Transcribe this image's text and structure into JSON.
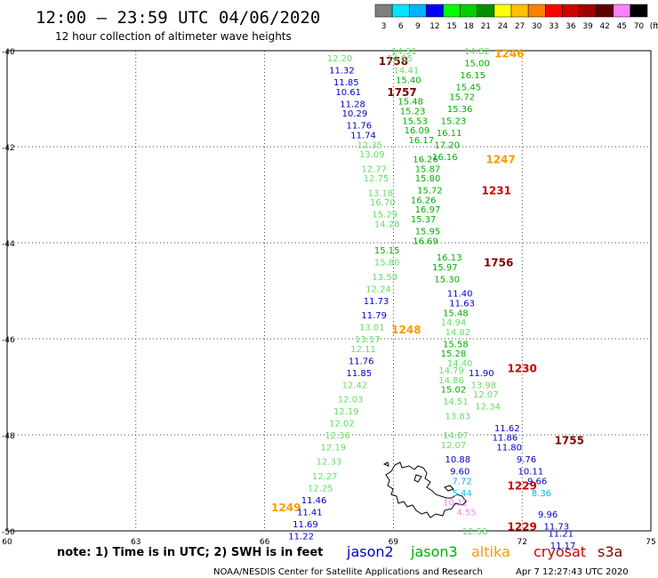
{
  "header": {
    "title": "12:00 – 23:59 UTC 04/06/2020",
    "subtitle": "12 hour collection of altimeter wave heights"
  },
  "colorbar": {
    "labels": [
      "3",
      "6",
      "9",
      "12",
      "15",
      "18",
      "21",
      "24",
      "27",
      "30",
      "33",
      "36",
      "39",
      "42",
      "45",
      "70",
      "(ft)"
    ],
    "colors": [
      "#7f7f7f",
      "#00e5ff",
      "#00b3ff",
      "#0000ff",
      "#00ff00",
      "#00d000",
      "#009000",
      "#ffff00",
      "#ffc000",
      "#ff8000",
      "#ff0000",
      "#d00000",
      "#a00000",
      "#600000",
      "#ff80ff",
      "#000000"
    ]
  },
  "axes": {
    "lat_labels": [
      "-40",
      "-42",
      "-44",
      "-46",
      "-48",
      "-50"
    ],
    "lat_values": [
      -40,
      -42,
      -44,
      -46,
      -48,
      -50
    ],
    "lon_labels": [
      "60",
      "63",
      "66",
      "69",
      "72",
      "75"
    ],
    "lon_values": [
      60,
      63,
      66,
      69,
      72,
      75
    ]
  },
  "footer": {
    "note": "note: 1) Time is in UTC; 2) SWH is in feet",
    "credit": "NOAA/NESDIS Center for Satellite Applications and Research",
    "timestamp": "Apr  7 12:27:43 UTC 2020"
  },
  "legend": [
    {
      "name": "jason2",
      "color": "#0000cc"
    },
    {
      "name": "jason3",
      "color": "#00b000"
    },
    {
      "name": "altika",
      "color": "#ff9900"
    },
    {
      "name": "cryosat",
      "color": "#cc0000"
    },
    {
      "name": "s3a",
      "color": "#800000"
    }
  ],
  "chart_data": {
    "type": "map",
    "xlim": [
      60,
      75
    ],
    "ylim": [
      -50,
      -40
    ],
    "pass_times": [
      {
        "text": "1758",
        "lon": 69.0,
        "lat": -40.2,
        "color": "#800000"
      },
      {
        "text": "1757",
        "lon": 69.2,
        "lat": -40.85,
        "color": "#800000"
      },
      {
        "text": "1246",
        "lon": 71.7,
        "lat": -40.05,
        "color": "#ff9900"
      },
      {
        "text": "1247",
        "lon": 71.5,
        "lat": -42.25,
        "color": "#ff9900"
      },
      {
        "text": "1231",
        "lon": 71.4,
        "lat": -42.9,
        "color": "#cc0000"
      },
      {
        "text": "1756",
        "lon": 71.45,
        "lat": -44.4,
        "color": "#800000"
      },
      {
        "text": "1248",
        "lon": 69.3,
        "lat": -45.8,
        "color": "#ff9900"
      },
      {
        "text": "1230",
        "lon": 72.0,
        "lat": -46.6,
        "color": "#cc0000"
      },
      {
        "text": "1755",
        "lon": 73.1,
        "lat": -48.1,
        "color": "#800000"
      },
      {
        "text": "1229",
        "lon": 72.0,
        "lat": -49.05,
        "color": "#cc0000"
      },
      {
        "text": "1229",
        "lon": 72.0,
        "lat": -49.9,
        "color": "#cc0000"
      },
      {
        "text": "1249",
        "lon": 66.5,
        "lat": -49.5,
        "color": "#ff9900"
      }
    ],
    "swh": [
      {
        "text": "14.31",
        "lon": 69.25,
        "lat": -40.0,
        "color": "#66dd66"
      },
      {
        "text": "14.85",
        "lon": 69.15,
        "lat": -40.15,
        "color": "#66dd66"
      },
      {
        "text": "14.41",
        "lon": 69.3,
        "lat": -40.4,
        "color": "#66dd66"
      },
      {
        "text": "15.40",
        "lon": 69.35,
        "lat": -40.6,
        "color": "#00b000"
      },
      {
        "text": "15.48",
        "lon": 69.4,
        "lat": -41.05,
        "color": "#00b000"
      },
      {
        "text": "15.23",
        "lon": 69.45,
        "lat": -41.25,
        "color": "#00b000"
      },
      {
        "text": "15.53",
        "lon": 69.5,
        "lat": -41.45,
        "color": "#00b000"
      },
      {
        "text": "16.09",
        "lon": 69.55,
        "lat": -41.65,
        "color": "#00b000"
      },
      {
        "text": "16.17",
        "lon": 69.65,
        "lat": -41.85,
        "color": "#00b000"
      },
      {
        "text": "16.26",
        "lon": 69.75,
        "lat": -42.25,
        "color": "#00b000"
      },
      {
        "text": "15.87",
        "lon": 69.8,
        "lat": -42.45,
        "color": "#00b000"
      },
      {
        "text": "15.80",
        "lon": 69.8,
        "lat": -42.65,
        "color": "#00b000"
      },
      {
        "text": "15.72",
        "lon": 69.85,
        "lat": -42.9,
        "color": "#00b000"
      },
      {
        "text": "16.26",
        "lon": 69.7,
        "lat": -43.1,
        "color": "#00b000"
      },
      {
        "text": "16.97",
        "lon": 69.8,
        "lat": -43.3,
        "color": "#00b000"
      },
      {
        "text": "15.37",
        "lon": 69.7,
        "lat": -43.5,
        "color": "#00b000"
      },
      {
        "text": "15.95",
        "lon": 69.8,
        "lat": -43.75,
        "color": "#00b000"
      },
      {
        "text": "16.69",
        "lon": 69.75,
        "lat": -43.95,
        "color": "#00b000"
      },
      {
        "text": "14.82",
        "lon": 70.95,
        "lat": -40.0,
        "color": "#66dd66"
      },
      {
        "text": "15.00",
        "lon": 70.95,
        "lat": -40.25,
        "color": "#00b000"
      },
      {
        "text": "16.15",
        "lon": 70.85,
        "lat": -40.5,
        "color": "#00b000"
      },
      {
        "text": "15.45",
        "lon": 70.75,
        "lat": -40.75,
        "color": "#00b000"
      },
      {
        "text": "15.72",
        "lon": 70.6,
        "lat": -40.95,
        "color": "#00b000"
      },
      {
        "text": "15.36",
        "lon": 70.55,
        "lat": -41.2,
        "color": "#00b000"
      },
      {
        "text": "15.23",
        "lon": 70.4,
        "lat": -41.45,
        "color": "#00b000"
      },
      {
        "text": "16.11",
        "lon": 70.3,
        "lat": -41.7,
        "color": "#00b000"
      },
      {
        "text": "17.20",
        "lon": 70.25,
        "lat": -41.95,
        "color": "#00b000"
      },
      {
        "text": "16.16",
        "lon": 70.2,
        "lat": -42.2,
        "color": "#00b000"
      },
      {
        "text": "12.20",
        "lon": 67.75,
        "lat": -40.15,
        "color": "#66dd66"
      },
      {
        "text": "11.32",
        "lon": 67.8,
        "lat": -40.4,
        "color": "#0000cc"
      },
      {
        "text": "11.85",
        "lon": 67.9,
        "lat": -40.65,
        "color": "#0000cc"
      },
      {
        "text": "10.61",
        "lon": 67.95,
        "lat": -40.85,
        "color": "#0000cc"
      },
      {
        "text": "11.28",
        "lon": 68.05,
        "lat": -41.1,
        "color": "#0000cc"
      },
      {
        "text": "10.29",
        "lon": 68.1,
        "lat": -41.3,
        "color": "#0000cc"
      },
      {
        "text": "11.76",
        "lon": 68.2,
        "lat": -41.55,
        "color": "#0000cc"
      },
      {
        "text": "11.74",
        "lon": 68.3,
        "lat": -41.75,
        "color": "#0000cc"
      },
      {
        "text": "12.35",
        "lon": 68.45,
        "lat": -41.95,
        "color": "#66dd66"
      },
      {
        "text": "13.09",
        "lon": 68.5,
        "lat": -42.15,
        "color": "#66dd66"
      },
      {
        "text": "12.77",
        "lon": 68.55,
        "lat": -42.45,
        "color": "#66dd66"
      },
      {
        "text": "12.75",
        "lon": 68.6,
        "lat": -42.65,
        "color": "#66dd66"
      },
      {
        "text": "13.18",
        "lon": 68.7,
        "lat": -42.95,
        "color": "#66dd66"
      },
      {
        "text": "16.70",
        "lon": 68.75,
        "lat": -43.15,
        "color": "#66dd66"
      },
      {
        "text": "15.29",
        "lon": 68.8,
        "lat": -43.4,
        "color": "#66dd66"
      },
      {
        "text": "14.28",
        "lon": 68.85,
        "lat": -43.6,
        "color": "#66dd66"
      },
      {
        "text": "15.15",
        "lon": 68.85,
        "lat": -44.15,
        "color": "#00b000"
      },
      {
        "text": "16.13",
        "lon": 70.3,
        "lat": -44.3,
        "color": "#00b000"
      },
      {
        "text": "15.97",
        "lon": 70.2,
        "lat": -44.5,
        "color": "#00b000"
      },
      {
        "text": "15.30",
        "lon": 70.25,
        "lat": -44.75,
        "color": "#00b000"
      },
      {
        "text": "15.80",
        "lon": 68.85,
        "lat": -44.4,
        "color": "#66dd66"
      },
      {
        "text": "13.59",
        "lon": 68.8,
        "lat": -44.7,
        "color": "#66dd66"
      },
      {
        "text": "12.24",
        "lon": 68.65,
        "lat": -44.95,
        "color": "#66dd66"
      },
      {
        "text": "11.73",
        "lon": 68.6,
        "lat": -45.2,
        "color": "#0000cc"
      },
      {
        "text": "11.79",
        "lon": 68.55,
        "lat": -45.5,
        "color": "#0000cc"
      },
      {
        "text": "13.01",
        "lon": 68.5,
        "lat": -45.75,
        "color": "#66dd66"
      },
      {
        "text": "13.17",
        "lon": 68.4,
        "lat": -46.0,
        "color": "#66dd66"
      },
      {
        "text": "12.11",
        "lon": 68.3,
        "lat": -46.2,
        "color": "#66dd66"
      },
      {
        "text": "11.76",
        "lon": 68.25,
        "lat": -46.45,
        "color": "#0000cc"
      },
      {
        "text": "11.85",
        "lon": 68.2,
        "lat": -46.7,
        "color": "#0000cc"
      },
      {
        "text": "12.42",
        "lon": 68.1,
        "lat": -46.95,
        "color": "#66dd66"
      },
      {
        "text": "12.03",
        "lon": 68.0,
        "lat": -47.25,
        "color": "#66dd66"
      },
      {
        "text": "12.19",
        "lon": 67.9,
        "lat": -47.5,
        "color": "#66dd66"
      },
      {
        "text": "12.02",
        "lon": 67.8,
        "lat": -47.75,
        "color": "#66dd66"
      },
      {
        "text": "12.36",
        "lon": 67.7,
        "lat": -48.0,
        "color": "#66dd66"
      },
      {
        "text": "12.19",
        "lon": 67.6,
        "lat": -48.25,
        "color": "#66dd66"
      },
      {
        "text": "12.33",
        "lon": 67.5,
        "lat": -48.55,
        "color": "#66dd66"
      },
      {
        "text": "12.27",
        "lon": 67.4,
        "lat": -48.85,
        "color": "#66dd66"
      },
      {
        "text": "12.25",
        "lon": 67.3,
        "lat": -49.1,
        "color": "#66dd66"
      },
      {
        "text": "11.46",
        "lon": 67.15,
        "lat": -49.35,
        "color": "#0000cc"
      },
      {
        "text": "11.41",
        "lon": 67.05,
        "lat": -49.6,
        "color": "#0000cc"
      },
      {
        "text": "11.69",
        "lon": 66.95,
        "lat": -49.85,
        "color": "#0000cc"
      },
      {
        "text": "11.22",
        "lon": 66.85,
        "lat": -50.1,
        "color": "#0000cc"
      },
      {
        "text": "11.40",
        "lon": 70.55,
        "lat": -45.05,
        "color": "#0000cc"
      },
      {
        "text": "11.63",
        "lon": 70.6,
        "lat": -45.25,
        "color": "#0000cc"
      },
      {
        "text": "15.48",
        "lon": 70.45,
        "lat": -45.45,
        "color": "#00b000"
      },
      {
        "text": "14.94",
        "lon": 70.4,
        "lat": -45.65,
        "color": "#66dd66"
      },
      {
        "text": "14.82",
        "lon": 70.5,
        "lat": -45.85,
        "color": "#66dd66"
      },
      {
        "text": "15.58",
        "lon": 70.45,
        "lat": -46.1,
        "color": "#00b000"
      },
      {
        "text": "15.28",
        "lon": 70.4,
        "lat": -46.3,
        "color": "#00b000"
      },
      {
        "text": "14.40",
        "lon": 70.55,
        "lat": -46.5,
        "color": "#66dd66"
      },
      {
        "text": "14.79",
        "lon": 70.35,
        "lat": -46.65,
        "color": "#66dd66"
      },
      {
        "text": "11.90",
        "lon": 71.05,
        "lat": -46.7,
        "color": "#0000cc"
      },
      {
        "text": "14.86",
        "lon": 70.35,
        "lat": -46.85,
        "color": "#66dd66"
      },
      {
        "text": "13.98",
        "lon": 71.1,
        "lat": -46.95,
        "color": "#66dd66"
      },
      {
        "text": "15.02",
        "lon": 70.4,
        "lat": -47.05,
        "color": "#00b000"
      },
      {
        "text": "12.07",
        "lon": 71.15,
        "lat": -47.15,
        "color": "#66dd66"
      },
      {
        "text": "14.51",
        "lon": 70.45,
        "lat": -47.3,
        "color": "#66dd66"
      },
      {
        "text": "12.34",
        "lon": 71.2,
        "lat": -47.4,
        "color": "#66dd66"
      },
      {
        "text": "13.83",
        "lon": 70.5,
        "lat": -47.6,
        "color": "#66dd66"
      },
      {
        "text": "11.62",
        "lon": 71.65,
        "lat": -47.85,
        "color": "#0000cc"
      },
      {
        "text": "11.86",
        "lon": 71.6,
        "lat": -48.05,
        "color": "#0000cc"
      },
      {
        "text": "14.07",
        "lon": 70.45,
        "lat": -48.0,
        "color": "#66dd66"
      },
      {
        "text": "12.07",
        "lon": 70.4,
        "lat": -48.2,
        "color": "#66dd66"
      },
      {
        "text": "11.80",
        "lon": 71.7,
        "lat": -48.25,
        "color": "#0000cc"
      },
      {
        "text": "10.88",
        "lon": 70.5,
        "lat": -48.5,
        "color": "#0000cc"
      },
      {
        "text": "9.76",
        "lon": 72.1,
        "lat": -48.5,
        "color": "#0000cc"
      },
      {
        "text": "9.60",
        "lon": 70.55,
        "lat": -48.75,
        "color": "#0000cc"
      },
      {
        "text": "10.11",
        "lon": 72.2,
        "lat": -48.75,
        "color": "#0000cc"
      },
      {
        "text": "7.72",
        "lon": 70.6,
        "lat": -48.95,
        "color": "#00b3ff"
      },
      {
        "text": "9.66",
        "lon": 72.35,
        "lat": -48.95,
        "color": "#0000cc"
      },
      {
        "text": "5.44",
        "lon": 70.6,
        "lat": -49.2,
        "color": "#00c8ff"
      },
      {
        "text": "8.36",
        "lon": 72.45,
        "lat": -49.2,
        "color": "#00b3ff"
      },
      {
        "text": "10.12",
        "lon": 70.45,
        "lat": -49.4,
        "color": "#ff80ff"
      },
      {
        "text": "9.96",
        "lon": 72.6,
        "lat": -49.65,
        "color": "#0000cc"
      },
      {
        "text": "4.55",
        "lon": 70.7,
        "lat": -49.6,
        "color": "#ff80ff"
      },
      {
        "text": "11.73",
        "lon": 72.8,
        "lat": -49.9,
        "color": "#0000cc"
      },
      {
        "text": "12.58",
        "lon": 70.9,
        "lat": -50.0,
        "color": "#66dd66"
      },
      {
        "text": "11.21",
        "lon": 72.9,
        "lat": -50.05,
        "color": "#0000cc"
      },
      {
        "text": "11.17",
        "lon": 72.95,
        "lat": -50.3,
        "color": "#0000cc"
      }
    ]
  }
}
